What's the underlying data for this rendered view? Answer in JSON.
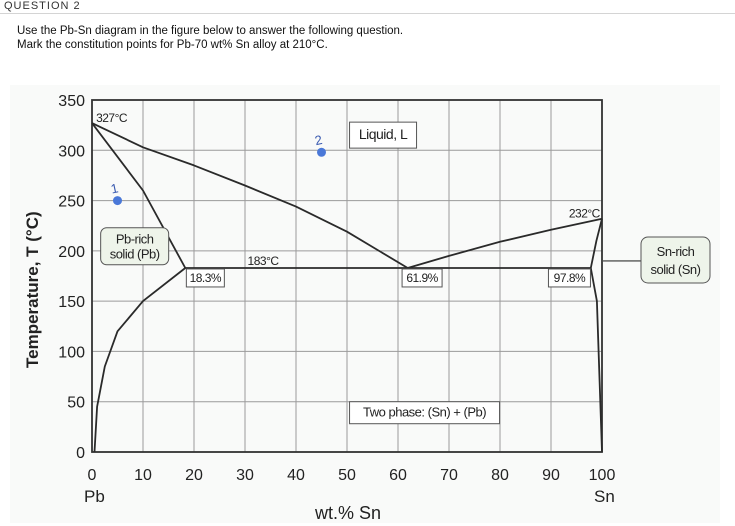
{
  "question": {
    "label": "QUESTION 2",
    "line1": "Use the Pb-Sn diagram in the figure below to answer the following question.",
    "line2": "Mark the constitution points for Pb-70 wt% Sn alloy at 210°C."
  },
  "chart_data": {
    "type": "phase-diagram",
    "title": "",
    "xlabel": "wt.% Sn",
    "ylabel": "Temperature, T (°C)",
    "xlim": [
      0,
      100
    ],
    "ylim": [
      0,
      350
    ],
    "x_ticks": [
      0,
      10,
      20,
      30,
      40,
      50,
      60,
      70,
      80,
      90,
      100
    ],
    "y_ticks": [
      0,
      50,
      100,
      150,
      200,
      250,
      300,
      350
    ],
    "x_end_labels": {
      "left": "Pb",
      "right": "Sn"
    },
    "labels": {
      "pb_melt": "327°C",
      "sn_melt": "232°C",
      "eutectic_temp": "183°C",
      "pb_solubility": "18.3%",
      "eutectic_comp": "61.9%",
      "sn_solubility": "97.8%",
      "liquid": "Liquid, L",
      "pb_rich_1": "Pb-rich",
      "pb_rich_2": "solid (Pb)",
      "sn_rich_1": "Sn-rich",
      "sn_rich_2": "solid (Sn)",
      "two_phase": "Two phase: (Sn) + (Pb)"
    },
    "points": [
      {
        "label": "1",
        "x": 5,
        "y": 250
      },
      {
        "label": "2",
        "x": 45,
        "y": 298
      }
    ],
    "liquidus_left": [
      [
        0,
        327
      ],
      [
        10,
        303
      ],
      [
        20,
        285
      ],
      [
        30,
        265
      ],
      [
        40,
        244
      ],
      [
        50,
        219
      ],
      [
        61.9,
        183
      ]
    ],
    "liquidus_right": [
      [
        61.9,
        183
      ],
      [
        70,
        195
      ],
      [
        80,
        209
      ],
      [
        90,
        221
      ],
      [
        100,
        232
      ]
    ],
    "solidus_left": [
      [
        0,
        327
      ],
      [
        10,
        260
      ],
      [
        18.3,
        183
      ]
    ],
    "solvus_left": [
      [
        18.3,
        183
      ],
      [
        10,
        150
      ],
      [
        5,
        120
      ],
      [
        2.5,
        85
      ],
      [
        1,
        45
      ],
      [
        0.5,
        0
      ]
    ],
    "solidus_right": [
      [
        97.8,
        183
      ],
      [
        98.9,
        210
      ],
      [
        100,
        232
      ]
    ],
    "solvus_right": [
      [
        97.8,
        183
      ],
      [
        99,
        150
      ],
      [
        100,
        0
      ]
    ],
    "eutectic_line": [
      [
        18.3,
        183
      ],
      [
        97.8,
        183
      ]
    ],
    "colors": {
      "point": "#4a78d8",
      "label_point": "#3a5ab0",
      "curve": "#2a2a2a",
      "grid": "#9a9a9a",
      "box": "#eef4ea"
    }
  }
}
